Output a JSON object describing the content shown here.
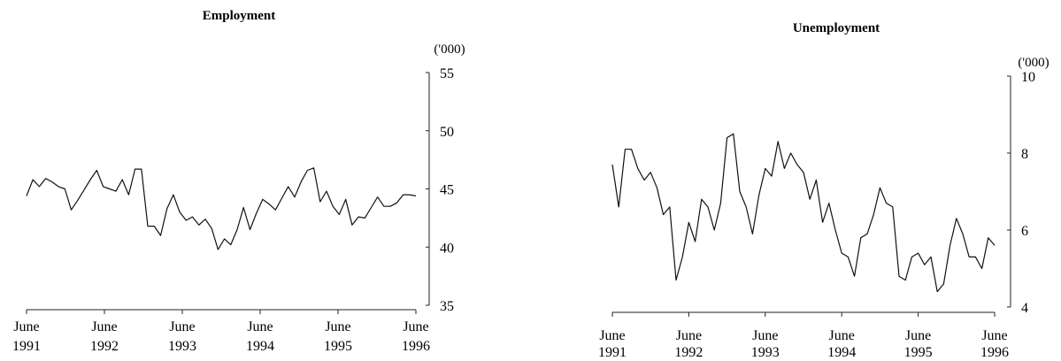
{
  "chart_data": [
    {
      "type": "line",
      "title": "Employment",
      "unit": "('000)",
      "ylim": [
        35,
        55
      ],
      "y_ticks": [
        "55",
        "50",
        "45",
        "40",
        "35"
      ],
      "x_tick_labels": [
        [
          "June",
          "1991"
        ],
        [
          "June",
          "1992"
        ],
        [
          "June",
          "1993"
        ],
        [
          "June",
          "1994"
        ],
        [
          "June",
          "1995"
        ],
        [
          "June",
          "1996"
        ]
      ],
      "grid": false,
      "series": [
        {
          "values": [
            44.4,
            45.8,
            45.2,
            45.9,
            45.6,
            45.2,
            45.0,
            43.2,
            44.0,
            44.9,
            45.8,
            46.6,
            45.2,
            45.0,
            44.8,
            45.8,
            44.5,
            46.7,
            46.7,
            41.8,
            41.8,
            41.0,
            43.3,
            44.5,
            43.0,
            42.3,
            42.6,
            41.9,
            42.4,
            41.6,
            39.8,
            40.7,
            40.2,
            41.5,
            43.4,
            41.5,
            42.9,
            44.1,
            43.7,
            43.2,
            44.2,
            45.2,
            44.3,
            45.6,
            46.6,
            46.8,
            43.9,
            44.8,
            43.5,
            42.8,
            44.1,
            41.9,
            42.6,
            42.5,
            43.4,
            44.3,
            43.5,
            43.5,
            43.8,
            44.5,
            44.5,
            44.4
          ]
        }
      ]
    },
    {
      "type": "line",
      "title": "Unemployment",
      "unit": "('000)",
      "ylim": [
        4,
        10
      ],
      "y_ticks": [
        "10",
        "8",
        "6",
        "4"
      ],
      "x_tick_labels": [
        [
          "June",
          "1991"
        ],
        [
          "June",
          "1992"
        ],
        [
          "June",
          "1993"
        ],
        [
          "June",
          "1994"
        ],
        [
          "June",
          "1995"
        ],
        [
          "June",
          "1996"
        ]
      ],
      "grid": false,
      "series": [
        {
          "values": [
            7.7,
            6.6,
            8.1,
            8.1,
            7.6,
            7.3,
            7.5,
            7.1,
            6.4,
            6.6,
            4.7,
            5.3,
            6.2,
            5.7,
            6.8,
            6.6,
            6.0,
            6.7,
            8.4,
            8.5,
            7.0,
            6.6,
            5.9,
            6.9,
            7.6,
            7.4,
            8.3,
            7.6,
            8.0,
            7.7,
            7.5,
            6.8,
            7.3,
            6.2,
            6.7,
            6.0,
            5.4,
            5.3,
            4.8,
            5.8,
            5.9,
            6.4,
            7.1,
            6.7,
            6.6,
            4.8,
            4.7,
            5.3,
            5.4,
            5.1,
            5.3,
            4.4,
            4.6,
            5.6,
            6.3,
            5.9,
            5.3,
            5.3,
            5.0,
            5.8,
            5.6
          ]
        }
      ]
    }
  ]
}
